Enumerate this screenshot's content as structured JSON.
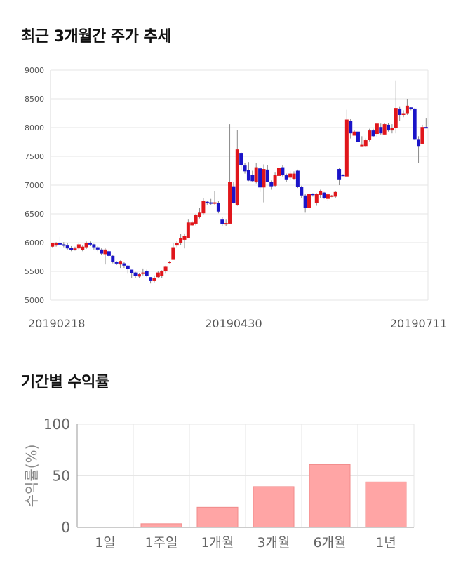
{
  "price_section": {
    "title": "최근 3개월간 주가 추세"
  },
  "returns_section": {
    "title": "기간별 수익률"
  },
  "colors": {
    "up": "#e0161b",
    "down": "#1a14c8",
    "bar": "#ffa5a5",
    "grid": "#e6e6e6"
  },
  "chart_data": [
    {
      "type": "candlestick",
      "title": "최근 3개월간 주가 추세",
      "ylim": [
        5000,
        9000
      ],
      "yticks": [
        5000,
        5500,
        6000,
        6500,
        7000,
        7500,
        8000,
        8500,
        9000
      ],
      "xtick_labels": [
        "20190218",
        "20190430",
        "20190711"
      ],
      "xtick_index": [
        0,
        48,
        97
      ],
      "grid": true,
      "candles": [
        [
          5930,
          5990,
          5920,
          6000
        ],
        [
          5950,
          5990,
          5930,
          6010
        ],
        [
          5990,
          5970,
          5950,
          6100
        ],
        [
          5970,
          5950,
          5920,
          6010
        ],
        [
          5950,
          5900,
          5880,
          5990
        ],
        [
          5910,
          5870,
          5850,
          5940
        ],
        [
          5870,
          5900,
          5860,
          5930
        ],
        [
          5900,
          5970,
          5870,
          6000
        ],
        [
          5870,
          5930,
          5850,
          5950
        ],
        [
          5920,
          5990,
          5890,
          6020
        ],
        [
          5990,
          5970,
          5940,
          6020
        ],
        [
          5970,
          5920,
          5880,
          5980
        ],
        [
          5920,
          5880,
          5850,
          5940
        ],
        [
          5880,
          5810,
          5780,
          5900
        ],
        [
          5800,
          5880,
          5620,
          5900
        ],
        [
          5850,
          5770,
          5750,
          5880
        ],
        [
          5770,
          5660,
          5640,
          5790
        ],
        [
          5660,
          5640,
          5610,
          5680
        ],
        [
          5620,
          5680,
          5560,
          5690
        ],
        [
          5640,
          5600,
          5560,
          5660
        ],
        [
          5600,
          5540,
          5460,
          5610
        ],
        [
          5530,
          5470,
          5390,
          5530
        ],
        [
          5480,
          5420,
          5380,
          5490
        ],
        [
          5410,
          5450,
          5390,
          5470
        ],
        [
          5460,
          5480,
          5430,
          5550
        ],
        [
          5500,
          5420,
          5400,
          5530
        ],
        [
          5400,
          5330,
          5290,
          5400
        ],
        [
          5330,
          5380,
          5310,
          5430
        ],
        [
          5400,
          5480,
          5390,
          5500
        ],
        [
          5420,
          5510,
          5390,
          5520
        ],
        [
          5500,
          5580,
          5460,
          5600
        ],
        [
          5650,
          5670,
          5640,
          5680
        ],
        [
          5700,
          5920,
          5700,
          6000
        ],
        [
          5950,
          6000,
          5920,
          6030
        ],
        [
          5990,
          6080,
          5960,
          6150
        ],
        [
          6050,
          6120,
          5900,
          6160
        ],
        [
          6080,
          6350,
          6080,
          6400
        ],
        [
          6300,
          6350,
          6280,
          6380
        ],
        [
          6330,
          6480,
          6300,
          6500
        ],
        [
          6450,
          6520,
          6420,
          6600
        ],
        [
          6510,
          6730,
          6490,
          6780
        ],
        [
          6710,
          6690,
          6660,
          6720
        ],
        [
          6700,
          6680,
          6650,
          6760
        ],
        [
          6680,
          6700,
          6660,
          6890
        ],
        [
          6690,
          6540,
          6510,
          6720
        ],
        [
          6400,
          6320,
          6280,
          6440
        ],
        [
          6330,
          6340,
          6290,
          6400
        ],
        [
          6330,
          7060,
          6330,
          8060
        ],
        [
          6980,
          6690,
          6680,
          7060
        ],
        [
          6650,
          7620,
          6640,
          7960
        ],
        [
          7560,
          7350,
          7260,
          7570
        ],
        [
          7340,
          7240,
          7200,
          7380
        ],
        [
          7260,
          7080,
          7070,
          7400
        ],
        [
          7180,
          7070,
          7050,
          7250
        ],
        [
          7060,
          7310,
          7030,
          7380
        ],
        [
          7290,
          6960,
          6880,
          7320
        ],
        [
          6960,
          7280,
          6700,
          7360
        ],
        [
          7270,
          7060,
          7060,
          7350
        ],
        [
          7060,
          6980,
          6920,
          7080
        ],
        [
          6990,
          7180,
          6970,
          7230
        ],
        [
          7160,
          7300,
          7100,
          7320
        ],
        [
          7310,
          7170,
          7150,
          7350
        ],
        [
          7170,
          7100,
          7050,
          7200
        ],
        [
          7130,
          7200,
          7090,
          7240
        ],
        [
          7110,
          7200,
          7100,
          7240
        ],
        [
          7250,
          6970,
          6950,
          7270
        ],
        [
          6970,
          6820,
          6770,
          6990
        ],
        [
          6820,
          6600,
          6520,
          6850
        ],
        [
          6600,
          6850,
          6540,
          6900
        ],
        [
          6850,
          6830,
          6800,
          6860
        ],
        [
          6690,
          6850,
          6640,
          6860
        ],
        [
          6830,
          6900,
          6780,
          6920
        ],
        [
          6870,
          6780,
          6760,
          6880
        ],
        [
          6760,
          6840,
          6730,
          6860
        ],
        [
          6800,
          6820,
          6790,
          6830
        ],
        [
          6800,
          6880,
          6780,
          6900
        ],
        [
          7280,
          7100,
          7000,
          7300
        ],
        [
          7180,
          7170,
          7160,
          7190
        ],
        [
          7150,
          8140,
          7150,
          8310
        ],
        [
          8110,
          7900,
          7810,
          8150
        ],
        [
          7860,
          7930,
          7860,
          7950
        ],
        [
          7930,
          7750,
          7740,
          7960
        ],
        [
          7680,
          7700,
          7680,
          7850
        ],
        [
          7680,
          7780,
          7660,
          7810
        ],
        [
          7790,
          7950,
          7760,
          7980
        ],
        [
          7950,
          7850,
          7830,
          7980
        ],
        [
          7890,
          8070,
          7830,
          8080
        ],
        [
          8010,
          7900,
          7880,
          8070
        ],
        [
          7880,
          8060,
          7880,
          8080
        ],
        [
          8050,
          7950,
          7930,
          8080
        ],
        [
          7950,
          8000,
          7900,
          8060
        ],
        [
          8000,
          8340,
          7900,
          8820
        ],
        [
          8330,
          8220,
          8120,
          8370
        ],
        [
          8220,
          8250,
          8180,
          8300
        ],
        [
          8250,
          8380,
          8220,
          8500
        ],
        [
          8350,
          8330,
          8300,
          8360
        ],
        [
          8330,
          7800,
          7780,
          8340
        ],
        [
          7800,
          7680,
          7380,
          7850
        ],
        [
          7720,
          8010,
          7710,
          8050
        ],
        [
          8010,
          8000,
          7990,
          8170
        ]
      ]
    },
    {
      "type": "bar",
      "title": "기간별 수익률",
      "ylabel": "수익률(%)",
      "categories": [
        "1일",
        "1주일",
        "1개월",
        "3개월",
        "6개월",
        "1년"
      ],
      "values": [
        0,
        3.5,
        19.5,
        39.5,
        61,
        44
      ],
      "ylim": [
        0,
        100
      ],
      "yticks": [
        0,
        50,
        100
      ],
      "grid": true
    }
  ]
}
